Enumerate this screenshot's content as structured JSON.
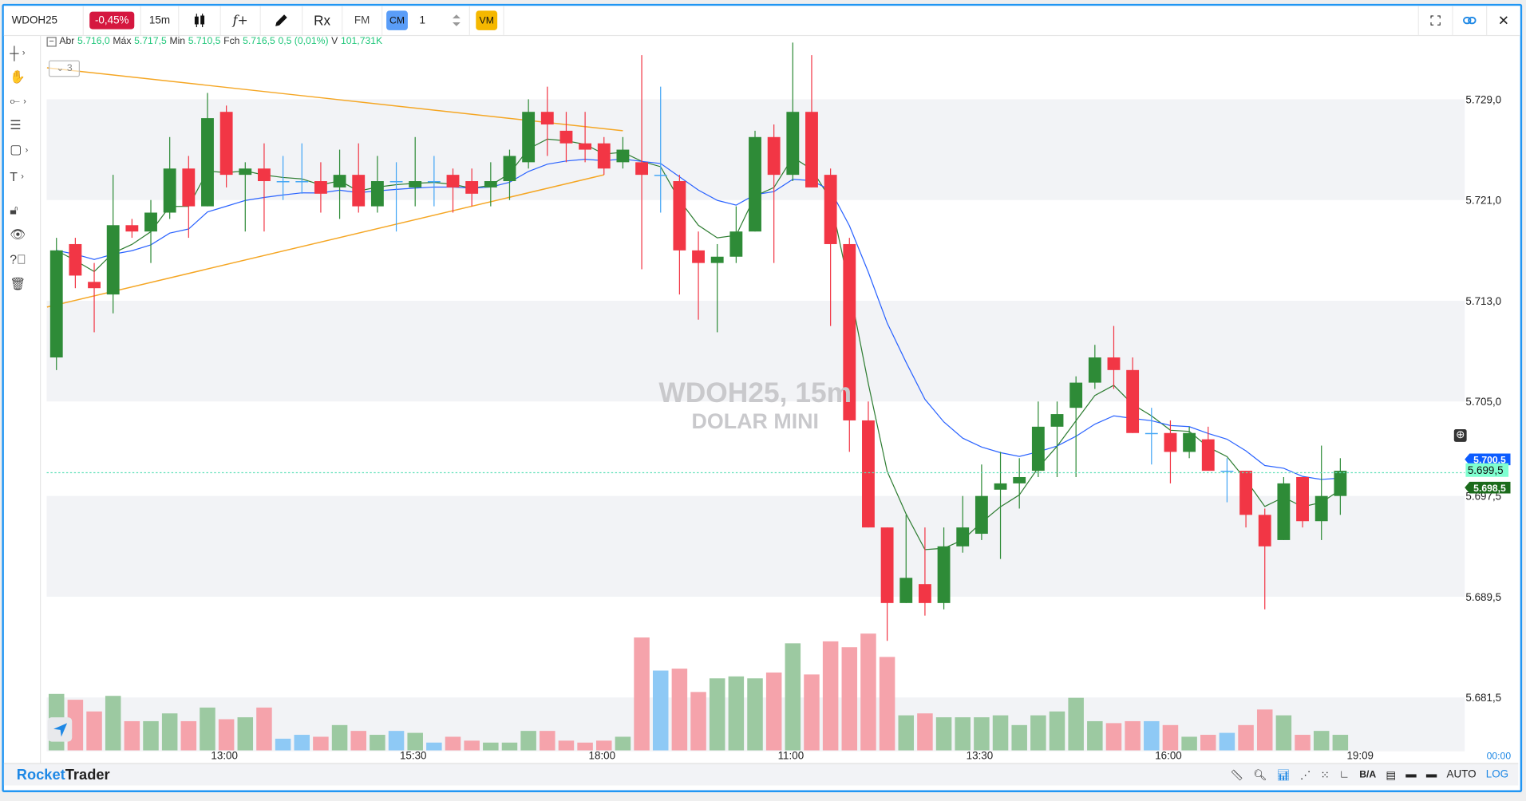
{
  "toolbar": {
    "symbol": "WDOH25",
    "change_badge": "-0,45%",
    "timeframe": "15m",
    "indicator_label": "f+",
    "rx_label": "Rx",
    "fm_label": "FM",
    "cm_label": "CM",
    "quantity": "1",
    "vm_label": "VM",
    "icons": [
      "candlestick-icon",
      "pencil-icon",
      "fullscreen-icon",
      "link-icon",
      "close-icon"
    ]
  },
  "legend": {
    "open_label": "Abr",
    "open": "5.716,0",
    "high_label": "Máx",
    "high": "5.717,5",
    "low_label": "Min",
    "low": "5.710,5",
    "close_label": "Fch",
    "close": "5.716,5",
    "change": "0,5 (0,01%)",
    "volume_label": "V",
    "volume": "101,731K",
    "drawings_count": "3"
  },
  "watermark": {
    "title": "WDOH25, 15m",
    "subtitle": "DOLAR MINI"
  },
  "price_axis": {
    "ticks": [
      "5.729,0",
      "5.721,0",
      "5.713,0",
      "5.705,0",
      "5.697,5",
      "5.689,5",
      "5.681,5"
    ],
    "tick_values": [
      5729.0,
      5721.0,
      5713.0,
      5705.0,
      5697.5,
      5689.5,
      5681.5
    ],
    "labels": [
      {
        "text": "5.700,5",
        "value": 5700.5,
        "color": "#0d5cff"
      },
      {
        "text": "5.699,5",
        "value": 5699.5,
        "color": "#7fffd0"
      },
      {
        "text": "5.698,5",
        "value": 5698.5,
        "color": "#1b6b1b"
      }
    ],
    "current_line_value": 5699.5
  },
  "time_axis": {
    "ticks": [
      {
        "label": "13:00",
        "index": 9
      },
      {
        "label": "15:30",
        "index": 19
      },
      {
        "label": "18:00",
        "index": 29
      },
      {
        "label": "11:00",
        "index": 39
      },
      {
        "label": "13:30",
        "index": 49
      },
      {
        "label": "16:00",
        "index": 59
      },
      {
        "label": "19:09",
        "index": 69
      }
    ],
    "clock": "00:00"
  },
  "bottom_bar": {
    "brand_a": "Rocket",
    "brand_b": "Trader",
    "ba_label": "B/A",
    "auto_label": "AUTO",
    "log_label": "LOG"
  },
  "colors": {
    "up": "#2e8b37",
    "down": "#f23645",
    "neutral": "#42a5f5",
    "vol_up": "#9cc9a1",
    "vol_down": "#f5a3ab",
    "vol_neutral": "#8ec9f5",
    "ma_fast": "#2e7d32",
    "ma_slow": "#2962ff",
    "trendline": "#f5a623",
    "band": "#f2f3f6",
    "accent": "#2196f3"
  },
  "chart_data": {
    "type": "candlestick",
    "symbol": "WDOH25",
    "timeframe": "15m",
    "ylim": [
      5679.5,
      5734.5
    ],
    "candles": [
      [
        5708.5,
        5718.0,
        5707.5,
        5717.0
      ],
      [
        5717.5,
        5718.0,
        5714.0,
        5715.0
      ],
      [
        5714.5,
        5716.0,
        5710.5,
        5714.0
      ],
      [
        5713.5,
        5723.0,
        5712.0,
        5719.0
      ],
      [
        5719.0,
        5719.5,
        5718.0,
        5718.5
      ],
      [
        5718.5,
        5721.0,
        5716.0,
        5720.0
      ],
      [
        5720.0,
        5726.0,
        5719.5,
        5723.5
      ],
      [
        5723.5,
        5724.5,
        5718.0,
        5720.5
      ],
      [
        5720.5,
        5729.5,
        5720.5,
        5727.5
      ],
      [
        5728.0,
        5728.5,
        5722.0,
        5723.0
      ],
      [
        5723.0,
        5724.0,
        5718.5,
        5723.5
      ],
      [
        5723.5,
        5725.5,
        5718.5,
        5722.5
      ],
      [
        5722.5,
        5724.5,
        5721.0,
        5722.5
      ],
      [
        5722.5,
        5725.5,
        5721.5,
        5722.5
      ],
      [
        5722.5,
        5724.0,
        5720.0,
        5721.5
      ],
      [
        5722.0,
        5725.0,
        5719.5,
        5723.0
      ],
      [
        5723.0,
        5725.5,
        5720.0,
        5720.5
      ],
      [
        5720.5,
        5724.5,
        5720.0,
        5722.5
      ],
      [
        5722.5,
        5724.0,
        5718.5,
        5722.5
      ],
      [
        5722.0,
        5726.0,
        5720.5,
        5722.5
      ],
      [
        5722.5,
        5724.5,
        5720.5,
        5722.5
      ],
      [
        5723.0,
        5723.5,
        5720.0,
        5722.0
      ],
      [
        5722.5,
        5723.5,
        5720.5,
        5721.5
      ],
      [
        5722.0,
        5724.0,
        5720.5,
        5722.5
      ],
      [
        5722.5,
        5725.0,
        5721.0,
        5724.5
      ],
      [
        5724.0,
        5729.0,
        5723.5,
        5728.0
      ],
      [
        5728.0,
        5730.0,
        5724.5,
        5727.0
      ],
      [
        5726.5,
        5728.0,
        5724.0,
        5725.5
      ],
      [
        5725.5,
        5728.0,
        5724.0,
        5725.0
      ],
      [
        5725.5,
        5726.0,
        5723.0,
        5723.5
      ],
      [
        5724.0,
        5726.0,
        5723.5,
        5725.0
      ],
      [
        5724.0,
        5732.5,
        5715.5,
        5723.0
      ],
      [
        5723.0,
        5730.0,
        5720.0,
        5723.0
      ],
      [
        5722.5,
        5723.0,
        5713.5,
        5717.0
      ],
      [
        5717.0,
        5718.5,
        5711.5,
        5716.0
      ],
      [
        5716.0,
        5717.5,
        5710.5,
        5716.5
      ],
      [
        5716.5,
        5720.5,
        5716.0,
        5718.5
      ],
      [
        5718.5,
        5726.5,
        5718.5,
        5726.0
      ],
      [
        5726.0,
        5727.0,
        5716.0,
        5723.0
      ],
      [
        5723.0,
        5733.5,
        5722.5,
        5728.0
      ],
      [
        5728.0,
        5732.5,
        5722.0,
        5722.0
      ],
      [
        5723.0,
        5723.5,
        5711.0,
        5717.5
      ],
      [
        5717.5,
        5718.0,
        5701.0,
        5703.5
      ],
      [
        5703.5,
        5705.0,
        5695.0,
        5695.0
      ],
      [
        5695.0,
        5695.0,
        5686.0,
        5689.0
      ],
      [
        5689.0,
        5696.0,
        5689.0,
        5691.0
      ],
      [
        5690.5,
        5695.0,
        5688.0,
        5689.0
      ],
      [
        5689.0,
        5695.0,
        5688.5,
        5693.5
      ],
      [
        5693.5,
        5697.5,
        5693.0,
        5695.0
      ],
      [
        5694.5,
        5700.0,
        5694.0,
        5697.5
      ],
      [
        5698.0,
        5701.0,
        5692.5,
        5698.5
      ],
      [
        5698.5,
        5700.5,
        5696.5,
        5699.0
      ],
      [
        5699.5,
        5705.0,
        5699.0,
        5703.0
      ],
      [
        5703.0,
        5705.0,
        5699.0,
        5704.0
      ],
      [
        5704.5,
        5707.0,
        5699.0,
        5706.5
      ],
      [
        5706.5,
        5709.5,
        5706.0,
        5708.5
      ],
      [
        5708.5,
        5711.0,
        5706.0,
        5707.5
      ],
      [
        5707.5,
        5708.5,
        5702.5,
        5702.5
      ],
      [
        5702.5,
        5704.5,
        5700.0,
        5702.5
      ],
      [
        5702.5,
        5703.5,
        5698.5,
        5701.0
      ],
      [
        5701.0,
        5703.0,
        5700.5,
        5702.5
      ],
      [
        5702.0,
        5703.0,
        5699.5,
        5699.5
      ],
      [
        5699.5,
        5700.5,
        5697.0,
        5699.5
      ],
      [
        5699.5,
        5699.5,
        5695.0,
        5696.0
      ],
      [
        5696.0,
        5696.5,
        5688.5,
        5693.5
      ],
      [
        5694.0,
        5699.0,
        5694.0,
        5698.5
      ],
      [
        5699.0,
        5699.0,
        5695.0,
        5695.5
      ],
      [
        5695.5,
        5701.5,
        5694.0,
        5697.5
      ],
      [
        5697.5,
        5700.5,
        5696.0,
        5699.5
      ]
    ],
    "volume": [
      58,
      52,
      40,
      56,
      30,
      30,
      38,
      30,
      44,
      32,
      34,
      44,
      12,
      16,
      14,
      26,
      20,
      16,
      20,
      18,
      8,
      14,
      10,
      8,
      8,
      20,
      20,
      10,
      8,
      10,
      14,
      116,
      82,
      84,
      60,
      74,
      76,
      74,
      80,
      110,
      78,
      112,
      106,
      120,
      96,
      36,
      38,
      34,
      34,
      34,
      36,
      26,
      36,
      40,
      54,
      30,
      28,
      30,
      30,
      26,
      14,
      16,
      18,
      26,
      42,
      36,
      16,
      20,
      16
    ],
    "trendlines": [
      {
        "from": [
          -0.5,
          5731.5
        ],
        "to": [
          30,
          5726.5
        ]
      },
      {
        "from": [
          -0.5,
          5712.5
        ],
        "to": [
          29,
          5723.0
        ]
      }
    ],
    "moving_averages": [
      {
        "type": "EMA",
        "period": 4
      },
      {
        "type": "EMA",
        "period": 12
      }
    ]
  }
}
